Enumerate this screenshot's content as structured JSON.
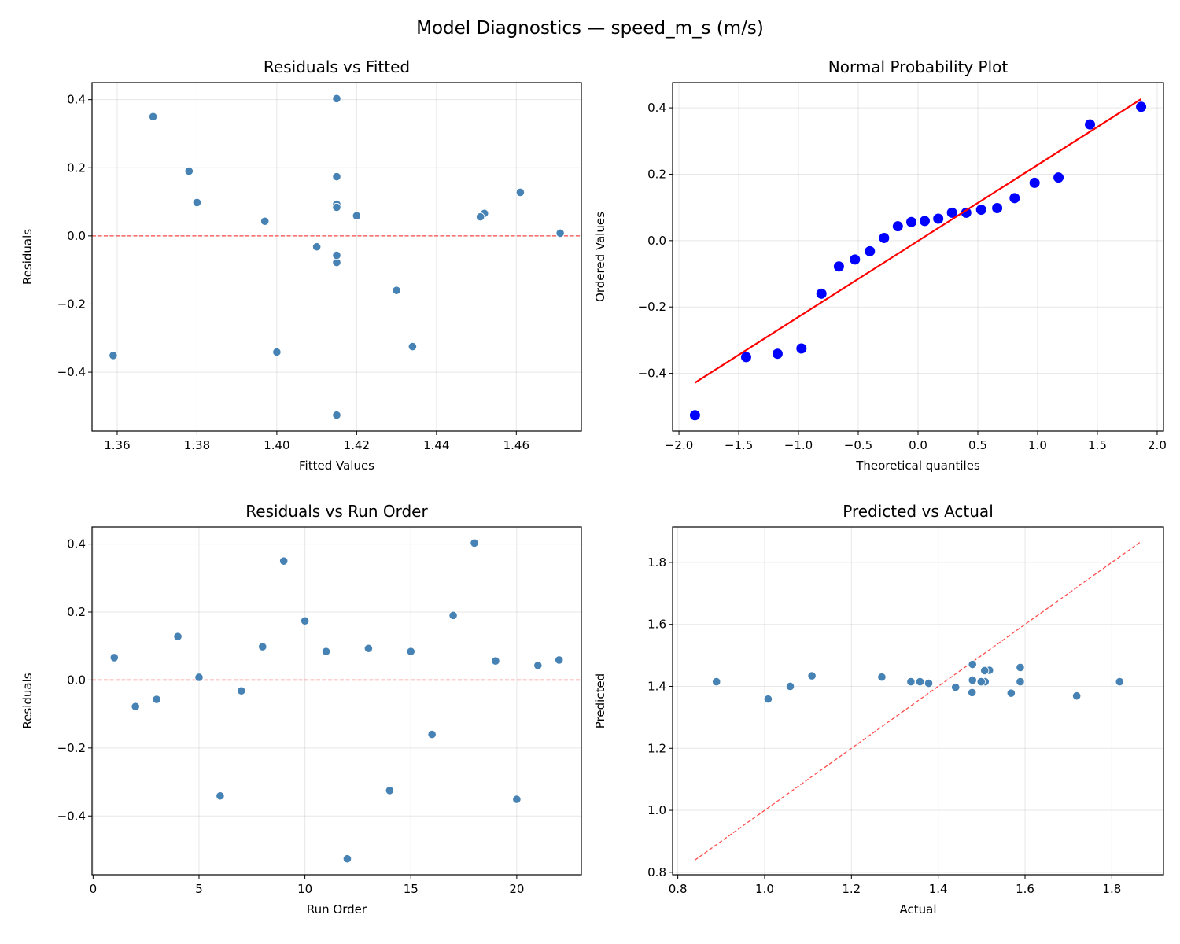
{
  "suptitle": "Model Diagnostics — speed_m_s (m/s)",
  "colors": {
    "points": "#4682b4",
    "qq_points": "#0000ff",
    "fit_line": "#ff0000",
    "reference_line": "#ff0000",
    "grid": "#b0b0b0"
  },
  "chart_data": [
    {
      "type": "scatter",
      "title": "Residuals vs Fitted",
      "xlabel": "Fitted Values",
      "ylabel": "Residuals",
      "xlim": [
        1.3537,
        1.4763
      ],
      "ylim": [
        -0.573,
        0.45
      ],
      "grid": true,
      "xticks": [
        1.36,
        1.38,
        1.4,
        1.42,
        1.44,
        1.46
      ],
      "xticklabels": [
        "1.36",
        "1.38",
        "1.40",
        "1.42",
        "1.44",
        "1.46"
      ],
      "yticks": [
        -0.4,
        -0.2,
        0.0,
        0.2,
        0.4
      ],
      "yticklabels": [
        "−0.4",
        "−0.2",
        "0.0",
        "0.2",
        "0.4"
      ],
      "hline": {
        "y": 0,
        "style": "dashed"
      },
      "x": [
        1.452,
        1.415,
        1.415,
        1.461,
        1.471,
        1.4,
        1.41,
        1.38,
        1.369,
        1.415,
        1.415,
        1.415,
        1.415,
        1.434,
        1.415,
        1.43,
        1.378,
        1.415,
        1.451,
        1.359,
        1.397,
        1.42
      ],
      "y": [
        0.066,
        -0.078,
        -0.057,
        0.128,
        0.008,
        -0.341,
        -0.032,
        0.098,
        0.35,
        0.174,
        0.084,
        -0.526,
        0.093,
        -0.325,
        0.084,
        -0.16,
        0.19,
        0.403,
        0.056,
        -0.351,
        0.043,
        0.059
      ]
    },
    {
      "type": "scatter",
      "title": "Normal Probability Plot",
      "xlabel": "Theoretical quantiles",
      "ylabel": "Ordered Values",
      "xlim": [
        -2.053,
        2.053
      ],
      "ylim": [
        -0.574,
        0.476
      ],
      "grid": true,
      "xticks": [
        -2.0,
        -1.5,
        -1.0,
        -0.5,
        0.0,
        0.5,
        1.0,
        1.5,
        2.0
      ],
      "xticklabels": [
        "−2.0",
        "−1.5",
        "−1.0",
        "−0.5",
        "0.0",
        "0.5",
        "1.0",
        "1.5",
        "2.0"
      ],
      "yticks": [
        -0.4,
        -0.2,
        0.0,
        0.2,
        0.4
      ],
      "yticklabels": [
        "−0.4",
        "−0.2",
        "0.0",
        "0.2",
        "0.4"
      ],
      "fit_line": {
        "slope": 0.229,
        "intercept": -0.001
      },
      "x": [
        -1.866,
        -1.438,
        -1.175,
        -0.975,
        -0.808,
        -0.662,
        -0.528,
        -0.403,
        -0.284,
        -0.169,
        -0.056,
        0.056,
        0.169,
        0.284,
        0.403,
        0.528,
        0.662,
        0.808,
        0.975,
        1.175,
        1.438,
        1.866
      ],
      "y": [
        -0.526,
        -0.351,
        -0.341,
        -0.325,
        -0.16,
        -0.078,
        -0.057,
        -0.032,
        0.008,
        0.043,
        0.056,
        0.059,
        0.066,
        0.084,
        0.084,
        0.093,
        0.098,
        0.128,
        0.174,
        0.19,
        0.35,
        0.403
      ]
    },
    {
      "type": "scatter",
      "title": "Residuals vs Run Order",
      "xlabel": "Run Order",
      "ylabel": "Residuals",
      "xlim": [
        -0.05,
        23.05
      ],
      "ylim": [
        -0.573,
        0.45
      ],
      "grid": true,
      "xticks": [
        0,
        5,
        10,
        15,
        20
      ],
      "xticklabels": [
        "0",
        "5",
        "10",
        "15",
        "20"
      ],
      "yticks": [
        -0.4,
        -0.2,
        0.0,
        0.2,
        0.4
      ],
      "yticklabels": [
        "−0.4",
        "−0.2",
        "0.0",
        "0.2",
        "0.4"
      ],
      "hline": {
        "y": 0,
        "style": "dashed"
      },
      "x": [
        1,
        2,
        3,
        4,
        5,
        6,
        7,
        8,
        9,
        10,
        11,
        12,
        13,
        14,
        15,
        16,
        17,
        18,
        19,
        20,
        21,
        22
      ],
      "y": [
        0.066,
        -0.078,
        -0.057,
        0.128,
        0.008,
        -0.341,
        -0.032,
        0.098,
        0.35,
        0.174,
        0.084,
        -0.526,
        0.093,
        -0.325,
        0.084,
        -0.16,
        0.19,
        0.403,
        0.056,
        -0.351,
        0.043,
        0.059
      ]
    },
    {
      "type": "scatter",
      "title": "Predicted vs Actual",
      "xlabel": "Actual",
      "ylabel": "Predicted",
      "xlim": [
        0.788,
        1.919
      ],
      "ylim": [
        0.792,
        1.914
      ],
      "grid": true,
      "xticks": [
        0.8,
        1.0,
        1.2,
        1.4,
        1.6,
        1.8
      ],
      "xticklabels": [
        "0.8",
        "1.0",
        "1.2",
        "1.4",
        "1.6",
        "1.8"
      ],
      "yticks": [
        0.8,
        1.0,
        1.2,
        1.4,
        1.6,
        1.8
      ],
      "yticklabels": [
        "0.8",
        "1.0",
        "1.2",
        "1.4",
        "1.6",
        "1.8"
      ],
      "reference_line": {
        "from": [
          0.839,
          0.839
        ],
        "to": [
          1.868,
          1.868
        ],
        "style": "dashed"
      },
      "x": [
        1.518,
        1.337,
        1.358,
        1.589,
        1.479,
        1.059,
        1.378,
        1.478,
        1.719,
        1.589,
        1.499,
        0.889,
        1.508,
        1.109,
        1.499,
        1.27,
        1.568,
        1.818,
        1.507,
        1.008,
        1.44,
        1.479
      ],
      "y": [
        1.452,
        1.415,
        1.415,
        1.461,
        1.471,
        1.4,
        1.41,
        1.38,
        1.369,
        1.415,
        1.415,
        1.415,
        1.415,
        1.434,
        1.415,
        1.43,
        1.378,
        1.415,
        1.451,
        1.359,
        1.397,
        1.42
      ]
    }
  ]
}
